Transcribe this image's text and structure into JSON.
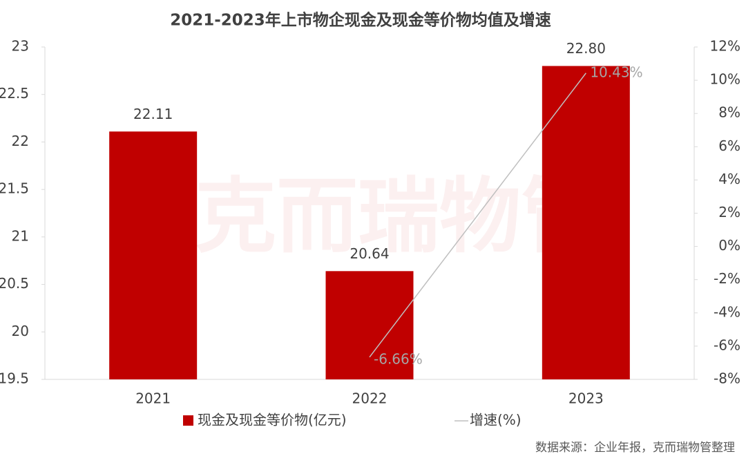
{
  "chart_data": {
    "type": "bar",
    "title": "2021-2023年上市物企现金及现金等价物均值及增速",
    "watermark": "克而瑞物管",
    "source": "数据来源：企业年报，克而瑞物管整理",
    "categories": [
      "2021",
      "2022",
      "2023"
    ],
    "series": [
      {
        "name": "现金及现金等价物(亿元)",
        "type": "bar",
        "color": "#c00000",
        "axis": "y",
        "values": [
          22.11,
          20.64,
          22.8
        ],
        "value_labels": [
          "22.11",
          "20.64",
          "22.80"
        ]
      },
      {
        "name": "增速(%)",
        "type": "line",
        "color": "#bfbfbf",
        "axis": "y2",
        "values": [
          null,
          -6.66,
          10.43
        ],
        "value_labels": [
          null,
          "-6.66%",
          "10.43%"
        ]
      }
    ],
    "ylim": [
      19.5,
      23
    ],
    "yticks": [
      19.5,
      20,
      20.5,
      21,
      21.5,
      22,
      22.5,
      23
    ],
    "y2lim": [
      -8,
      12
    ],
    "y2ticks": [
      {
        "value": -8,
        "label": "-8%"
      },
      {
        "value": -6,
        "label": "-6%"
      },
      {
        "value": -4,
        "label": "-4%"
      },
      {
        "value": -2,
        "label": "-2%"
      },
      {
        "value": 0,
        "label": "0%"
      },
      {
        "value": 2,
        "label": "2%"
      },
      {
        "value": 4,
        "label": "4%"
      },
      {
        "value": 6,
        "label": "6%"
      },
      {
        "value": 8,
        "label": "8%"
      },
      {
        "value": 10,
        "label": "10%"
      },
      {
        "value": 12,
        "label": "12%"
      }
    ],
    "grid": false
  }
}
